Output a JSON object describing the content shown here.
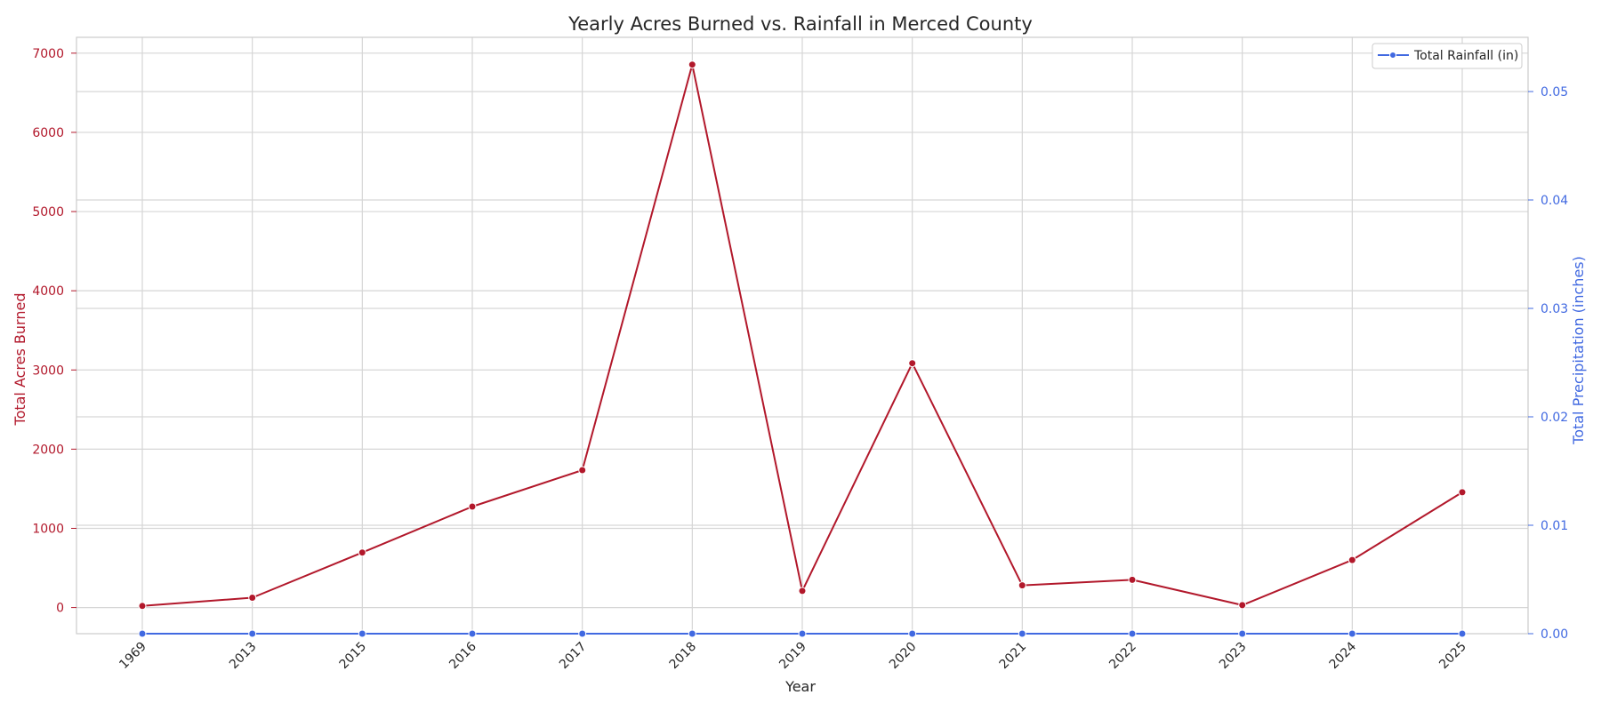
{
  "chart_data": {
    "type": "line",
    "title": "Yearly Acres Burned vs. Rainfall in Merced County",
    "xlabel": "Year",
    "categories": [
      "1969",
      "2013",
      "2015",
      "2016",
      "2017",
      "2018",
      "2019",
      "2020",
      "2021",
      "2022",
      "2023",
      "2024",
      "2025"
    ],
    "y_left": {
      "label": "Total Acres Burned",
      "ylim": [
        -330,
        7200
      ],
      "ticks": [
        0,
        1000,
        2000,
        3000,
        4000,
        5000,
        6000,
        7000
      ],
      "color": "#b2182b"
    },
    "y_right": {
      "label": "Total Precipitation (inches)",
      "ylim": [
        0,
        0.055
      ],
      "ticks": [
        "0.00",
        "0.01",
        "0.02",
        "0.03",
        "0.04",
        "0.05"
      ],
      "color": "#4169e1"
    },
    "series": [
      {
        "axis": "left",
        "color": "#b2182b",
        "values": [
          20,
          125,
          695,
          1275,
          1735,
          6855,
          210,
          3085,
          280,
          350,
          30,
          600,
          1455
        ]
      },
      {
        "name": "Total Rainfall (in)",
        "axis": "right",
        "color": "#4169e1",
        "values": [
          0,
          0,
          0,
          0,
          0,
          0,
          0,
          0,
          0,
          0,
          0,
          0,
          0
        ]
      }
    ],
    "legend": {
      "position": "top-right",
      "entries": [
        "Total Rainfall (in)"
      ]
    },
    "grid": true
  }
}
